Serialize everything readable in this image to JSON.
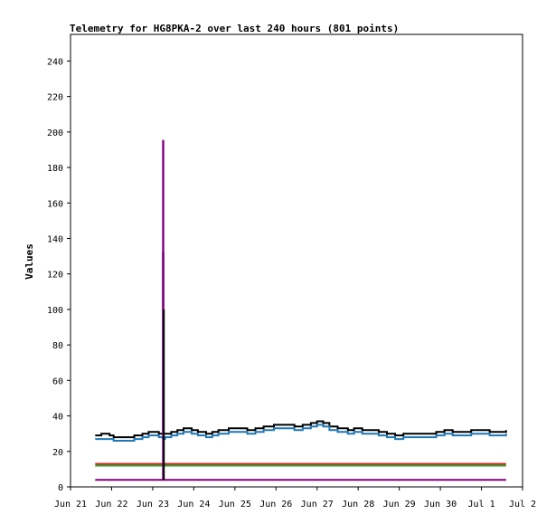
{
  "chart_data": {
    "type": "line",
    "title": "Telemetry for HG8PKA-2 over last 240 hours (801 points)",
    "xlabel": "",
    "ylabel": "Values",
    "ylim": [
      0,
      255
    ],
    "yticks": [
      0,
      20,
      40,
      60,
      80,
      100,
      120,
      140,
      160,
      180,
      200,
      220,
      240
    ],
    "xlim": [
      0,
      11
    ],
    "xticks": [
      "Jun 21",
      "Jun 22",
      "Jun 23",
      "Jun 24",
      "Jun 25",
      "Jun 26",
      "Jun 27",
      "Jun 28",
      "Jun 29",
      "Jun 30",
      "Jul 1",
      "Jul 2"
    ],
    "grid": false,
    "series": [
      {
        "color": "#000000",
        "x": [
          0.6,
          0.75,
          0.95,
          1.05,
          1.25,
          1.55,
          1.75,
          1.9,
          2.0,
          2.15,
          2.25,
          2.25,
          2.26,
          2.3,
          2.45,
          2.6,
          2.75,
          2.95,
          3.1,
          3.3,
          3.45,
          3.6,
          3.85,
          4.1,
          4.3,
          4.5,
          4.7,
          4.95,
          5.2,
          5.45,
          5.65,
          5.85,
          6.0,
          6.15,
          6.3,
          6.5,
          6.75,
          6.9,
          7.1,
          7.3,
          7.5,
          7.7,
          7.9,
          8.1,
          8.4,
          8.7,
          8.9,
          9.1,
          9.3,
          9.5,
          9.75,
          10.0,
          10.2,
          10.45,
          10.6
        ],
        "y": [
          29,
          30,
          29,
          28,
          28,
          29,
          30,
          31,
          31,
          30,
          30,
          132,
          30,
          30,
          31,
          32,
          33,
          32,
          31,
          30,
          31,
          32,
          33,
          33,
          32,
          33,
          34,
          35,
          35,
          34,
          35,
          36,
          37,
          36,
          34,
          33,
          32,
          33,
          32,
          32,
          31,
          30,
          29,
          30,
          30,
          30,
          31,
          32,
          31,
          31,
          32,
          32,
          31,
          31,
          32
        ]
      },
      {
        "color": "#1f77b4",
        "x": [
          0.6,
          0.75,
          0.95,
          1.05,
          1.25,
          1.55,
          1.75,
          1.9,
          2.0,
          2.15,
          2.25,
          2.3,
          2.45,
          2.6,
          2.75,
          2.95,
          3.1,
          3.3,
          3.45,
          3.6,
          3.85,
          4.1,
          4.3,
          4.5,
          4.7,
          4.95,
          5.2,
          5.45,
          5.65,
          5.85,
          6.0,
          6.15,
          6.3,
          6.5,
          6.75,
          6.9,
          7.1,
          7.3,
          7.5,
          7.7,
          7.9,
          8.1,
          8.4,
          8.7,
          8.9,
          9.1,
          9.3,
          9.5,
          9.75,
          10.0,
          10.2,
          10.45,
          10.6
        ],
        "y": [
          27,
          27,
          27,
          26,
          26,
          27,
          28,
          29,
          29,
          28,
          27,
          28,
          29,
          30,
          31,
          30,
          29,
          28,
          29,
          30,
          31,
          31,
          30,
          31,
          32,
          33,
          33,
          32,
          33,
          34,
          35,
          34,
          32,
          31,
          30,
          31,
          30,
          30,
          29,
          28,
          27,
          28,
          28,
          28,
          29,
          30,
          29,
          29,
          30,
          30,
          29,
          29,
          30
        ]
      },
      {
        "color": "#2ca02c",
        "x": [
          0.6,
          10.6
        ],
        "y": [
          12,
          12
        ]
      },
      {
        "color": "#d62728",
        "x": [
          0.6,
          10.6
        ],
        "y": [
          13,
          13
        ]
      },
      {
        "color": "#800080",
        "x": [
          0.6,
          2.25,
          2.25,
          2.26,
          10.6
        ],
        "y": [
          4,
          4,
          195,
          4,
          4
        ]
      },
      {
        "color": "#000000",
        "x": [
          2.27,
          2.27
        ],
        "y": [
          4,
          100
        ]
      }
    ]
  }
}
